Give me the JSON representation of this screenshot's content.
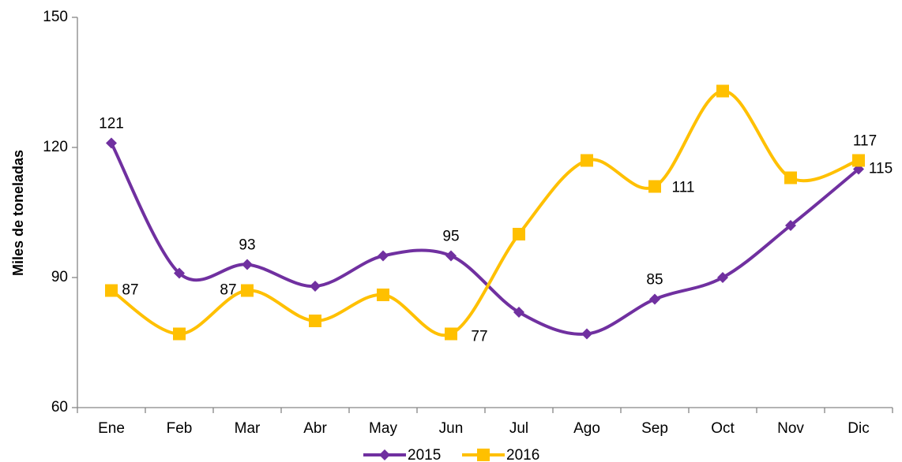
{
  "chart_data": {
    "type": "line",
    "y_label": "Miles de toneladas",
    "categories": [
      "Ene",
      "Feb",
      "Mar",
      "Abr",
      "May",
      "Jun",
      "Jul",
      "Ago",
      "Sep",
      "Oct",
      "Nov",
      "Dic"
    ],
    "series": [
      {
        "name": "2015",
        "color": "#7030a0",
        "marker": "diamond",
        "values": [
          121,
          91,
          93,
          88,
          95,
          95,
          82,
          77,
          85,
          90,
          102,
          115
        ],
        "value_labels": [
          "121",
          null,
          "93",
          null,
          null,
          "95",
          null,
          null,
          "85",
          null,
          null,
          "115"
        ]
      },
      {
        "name": "2016",
        "color": "#ffc000",
        "marker": "square",
        "values": [
          87,
          77,
          87,
          80,
          86,
          77,
          100,
          117,
          111,
          133,
          113,
          117
        ],
        "value_labels": [
          "87",
          null,
          "87",
          null,
          null,
          "77",
          null,
          null,
          "111",
          null,
          null,
          "117"
        ]
      }
    ],
    "ylim": [
      60,
      150
    ],
    "yticks": [
      60,
      90,
      120,
      150
    ],
    "grid": false,
    "smooth": true,
    "legend": "bottom"
  }
}
